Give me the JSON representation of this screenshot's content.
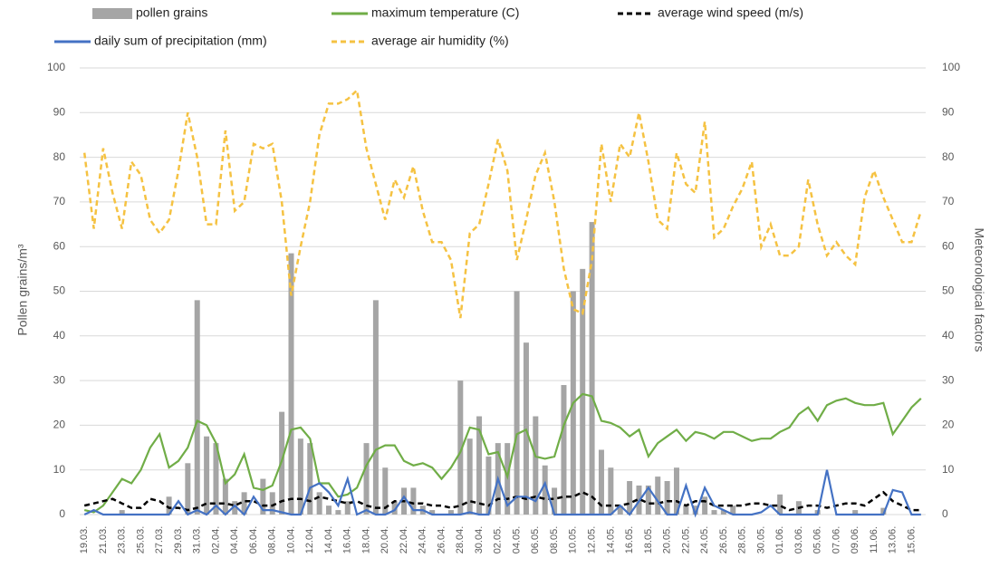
{
  "chart_data": {
    "type": "combo",
    "y_label": "Pollen grains/m³",
    "y2_label": "Meteorological factors",
    "categories": [
      "19.03.",
      null,
      "21.03.",
      null,
      "23.03.",
      null,
      "25.03.",
      null,
      "27.03.",
      null,
      "29.03.",
      null,
      "31.03.",
      null,
      "02.04.",
      null,
      "04.04.",
      null,
      "06.04.",
      null,
      "08.04.",
      null,
      "10.04.",
      null,
      "12.04.",
      null,
      "14.04.",
      null,
      "16.04.",
      null,
      "18.04.",
      null,
      "20.04.",
      null,
      "22.04.",
      null,
      "24.04.",
      null,
      "26.04.",
      null,
      "28.04.",
      null,
      "30.04.",
      null,
      "02.05.",
      null,
      "04.05.",
      null,
      "06.05.",
      null,
      "08.05.",
      null,
      "10.05.",
      null,
      "12.05.",
      null,
      "14.05.",
      null,
      "16.05.",
      null,
      "18.05.",
      null,
      "20.05.",
      null,
      "22.05.",
      null,
      "24.05.",
      null,
      "26.05.",
      null,
      "28.05.",
      null,
      "30.05.",
      null,
      "01.06.",
      null,
      "03.06.",
      null,
      "05.06.",
      null,
      "07.06.",
      null,
      "09.06.",
      null,
      "11.06.",
      null,
      "13.06.",
      null,
      "15.06.",
      null
    ],
    "ylim": [
      0,
      100
    ],
    "yticks": [
      0,
      10,
      20,
      30,
      40,
      50,
      60,
      70,
      80,
      90,
      100
    ],
    "y2lim": [
      0,
      100
    ],
    "y2ticks": [
      0,
      10,
      20,
      30,
      40,
      50,
      60,
      70,
      80,
      90,
      100
    ],
    "grid": true,
    "series": [
      {
        "name": "pollen grains",
        "mark": "bar",
        "color": "#a5a5a5",
        "values": [
          0,
          0,
          0,
          0,
          1,
          0,
          0,
          0,
          0,
          4,
          0,
          11.5,
          48,
          17.5,
          16,
          8,
          3,
          5,
          0,
          8,
          5,
          23,
          58.5,
          17,
          16,
          5,
          2,
          1,
          3,
          0,
          16,
          48,
          10.5,
          3,
          6,
          6,
          2,
          1,
          0,
          1,
          30,
          17,
          22,
          13,
          16,
          16,
          50,
          38.5,
          22,
          11,
          6,
          29,
          50,
          55,
          65.5,
          14.5,
          10.5,
          2,
          7.5,
          6.5,
          6.5,
          8.5,
          7.5,
          10.5,
          2,
          2,
          4,
          1,
          1,
          2,
          0,
          0,
          0,
          0,
          4.5,
          0,
          3,
          0,
          1,
          0,
          0,
          0,
          1,
          0,
          0,
          1.5,
          0,
          0,
          0,
          0
        ]
      },
      {
        "name": "maximum temperature (C)",
        "mark": "line",
        "axis": "y2",
        "color": "#70ad47",
        "dash": false,
        "values": [
          1,
          0.5,
          2,
          5,
          8,
          7,
          10,
          15,
          18,
          10.5,
          12,
          15,
          21,
          20,
          16,
          7,
          9,
          13.5,
          6,
          5.5,
          6.5,
          12,
          19,
          19.5,
          17,
          7,
          7,
          4,
          4.5,
          6,
          11,
          14.5,
          15.5,
          15.5,
          12,
          11,
          11.5,
          10.5,
          8,
          10.5,
          14,
          19.5,
          19,
          13.5,
          14,
          8.5,
          18,
          19,
          13,
          12.5,
          13,
          20,
          25,
          27,
          26.5,
          21,
          20.5,
          19.5,
          17.5,
          19,
          13,
          16,
          17.5,
          19,
          16.5,
          18.5,
          18,
          17,
          18.5,
          18.5,
          17.5,
          16.5,
          17,
          17,
          18.5,
          19.5,
          22.5,
          24,
          21,
          24.5,
          25.5,
          26,
          25,
          24.5,
          24.5,
          25,
          18,
          21,
          24,
          26
        ]
      },
      {
        "name": "average wind speed (m/s)",
        "mark": "line",
        "axis": "y2",
        "color": "#000000",
        "dash": true,
        "values": [
          2,
          2.5,
          3,
          3.5,
          2.5,
          1.5,
          1.5,
          3.5,
          3,
          1.5,
          1.5,
          1,
          1.5,
          2.5,
          2.5,
          2.5,
          2,
          3,
          3,
          2,
          2,
          3,
          3.5,
          3.5,
          3,
          4,
          3.5,
          3,
          2.5,
          3,
          2,
          1.5,
          1.5,
          3,
          3,
          2.5,
          2.5,
          2,
          2,
          1.5,
          2,
          3,
          2.5,
          2,
          3.5,
          3.5,
          4,
          3.5,
          4,
          3.5,
          3.5,
          4,
          4,
          5,
          4,
          2,
          2,
          2,
          2.5,
          3.5,
          2.5,
          2.5,
          3,
          3,
          2,
          3,
          3,
          2,
          2,
          2,
          2,
          2.5,
          2.5,
          2,
          2,
          1,
          1.5,
          2,
          2,
          1.5,
          2,
          2.5,
          2.5,
          2,
          3.5,
          5,
          3,
          2,
          1,
          1
        ]
      },
      {
        "name": "daily sum of precipitation (mm)",
        "mark": "line",
        "axis": "y2",
        "color": "#4472c4",
        "dash": false,
        "values": [
          0,
          1,
          0,
          0,
          0,
          0,
          0,
          0,
          0,
          0,
          3,
          0,
          1,
          0,
          2,
          0,
          2,
          0,
          4,
          1,
          1,
          0.5,
          0,
          0,
          6,
          7,
          5,
          2,
          8,
          0,
          1,
          0,
          0,
          1,
          4,
          1,
          1,
          0,
          0,
          0,
          0,
          0.5,
          0,
          0,
          8,
          2,
          4,
          4,
          3,
          7,
          0,
          0,
          0,
          0,
          0,
          0,
          0,
          2,
          0,
          3,
          6,
          3,
          0,
          0,
          6.5,
          0,
          6,
          2,
          1,
          0,
          0,
          0,
          0.5,
          2,
          0,
          0,
          0,
          0,
          0,
          10,
          0,
          0,
          0,
          0,
          0,
          0,
          5.5,
          5,
          0,
          0
        ]
      },
      {
        "name": "average air humidity (%)",
        "mark": "line",
        "axis": "y2",
        "color": "#f5c242",
        "dash": true,
        "values": [
          81,
          64,
          82,
          72,
          64,
          79,
          76,
          66,
          63,
          66,
          77,
          90,
          80,
          65,
          65,
          86,
          68,
          70,
          83,
          82,
          83,
          70,
          49,
          60,
          70,
          85,
          92,
          92,
          93,
          95,
          82,
          74,
          66,
          75,
          71,
          78,
          68,
          61,
          61,
          57,
          44,
          63,
          65,
          74,
          84,
          77,
          57,
          66,
          76,
          81,
          70,
          55,
          46,
          45,
          57,
          83,
          70,
          83,
          80,
          90,
          79,
          66,
          64,
          81,
          74,
          72,
          88,
          62,
          64,
          69,
          73,
          79,
          60,
          65,
          58,
          58,
          60,
          75,
          65,
          58,
          61,
          58,
          56,
          71,
          77,
          71,
          66,
          61,
          61,
          68
        ]
      }
    ]
  }
}
